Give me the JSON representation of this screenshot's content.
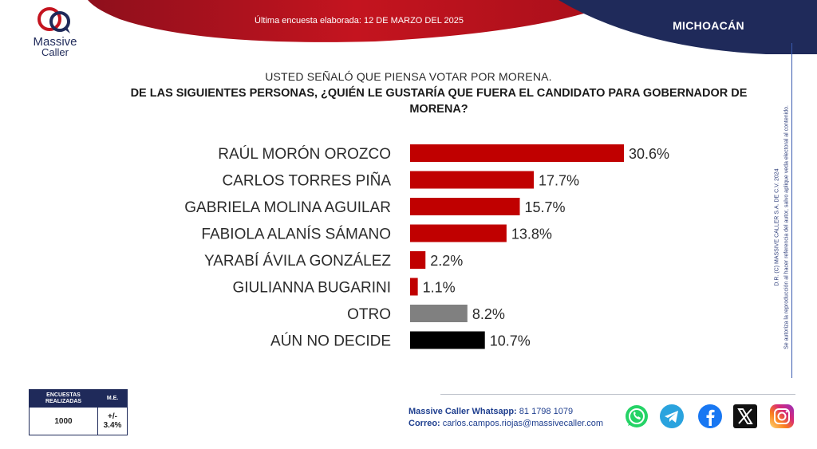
{
  "header": {
    "brand_line1": "Massive",
    "brand_line2": "Caller",
    "survey_date": "Última encuesta elaborada: 12 DE MARZO DEL 2025",
    "region": "MICHOACÁN"
  },
  "question": {
    "line1": "USTED SEÑALÓ QUE PIENSA VOTAR POR MORENA.",
    "line2": "DE LAS SIGUIENTES PERSONAS, ¿QUIÉN LE GUSTARÍA QUE FUERA EL CANDIDATO PARA GOBERNADOR DE MORENA?"
  },
  "chart_data": {
    "type": "bar",
    "orientation": "horizontal",
    "categories": [
      "RAÚL MORÓN OROZCO",
      "CARLOS TORRES PIÑA",
      "GABRIELA MOLINA AGUILAR",
      "FABIOLA ALANÍS SÁMANO",
      "YARABÍ ÁVILA GONZÁLEZ",
      "GIULIANNA BUGARINI",
      "OTRO",
      "AÚN NO DECIDE"
    ],
    "values": [
      30.6,
      17.7,
      15.7,
      13.8,
      2.2,
      1.1,
      8.2,
      10.7
    ],
    "value_labels": [
      "30.6%",
      "17.7%",
      "15.7%",
      "13.8%",
      "2.2%",
      "1.1%",
      "8.2%",
      "10.7%"
    ],
    "colors": [
      "#c00000",
      "#c00000",
      "#c00000",
      "#c00000",
      "#c00000",
      "#c00000",
      "#808080",
      "#000000"
    ],
    "xlim": [
      0,
      35
    ]
  },
  "side_note": {
    "line1": "D.R. (C) MASSIVE CALLER S.A. DE C.V. 2024",
    "line2": "Se autoriza la reproducción al hacer referencia del autor, salvo aplique veda electoral al contenido."
  },
  "stats": {
    "col1_header": "ENCUESTAS REALIZADAS",
    "col2_header": "M.E.",
    "surveys": "1000",
    "margin": "+/- 3.4%"
  },
  "contact": {
    "whatsapp_label": "Massive Caller Whatsapp:",
    "whatsapp_number": "81 1798 1079",
    "email_label": "Correo:",
    "email": "carlos.campos.riojas@massivecaller.com"
  },
  "social_icons": [
    "whatsapp-icon",
    "telegram-icon",
    "facebook-icon",
    "x-icon",
    "instagram-icon"
  ],
  "colors": {
    "red": "#c00000",
    "navy": "#1f2a5a",
    "gray": "#808080"
  }
}
